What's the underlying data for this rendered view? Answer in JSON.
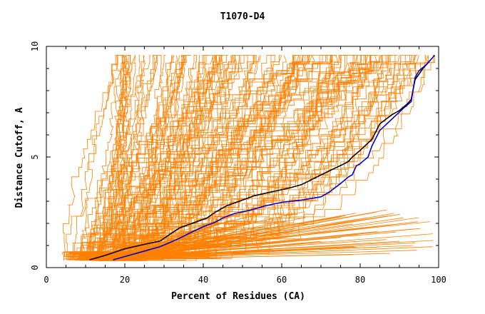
{
  "chart_data": {
    "type": "line",
    "title": "T1070-D4",
    "xlabel": "Percent of Residues (CA)",
    "ylabel": "Distance Cutoff, A",
    "xlim": [
      0,
      100
    ],
    "ylim": [
      0,
      10
    ],
    "x_ticks": [
      "0",
      "20",
      "40",
      "60",
      "80",
      "100"
    ],
    "y_ticks": [
      "0",
      "5",
      "10"
    ],
    "grid": false,
    "legend": "none",
    "colors": {
      "models": "#ff8000",
      "black_series": "#000000",
      "blue_series": "#0000cc"
    },
    "series": [
      {
        "color": "#000000",
        "x": [
          11,
          15,
          20,
          25,
          29,
          31,
          34,
          38,
          41,
          43,
          46,
          50,
          53,
          58,
          62,
          65,
          69,
          73,
          76,
          77,
          78,
          80,
          83,
          85,
          88,
          90,
          92,
          93,
          94,
          96,
          98
        ],
        "y": [
          0.35,
          0.55,
          0.85,
          1.05,
          1.2,
          1.45,
          1.8,
          2.05,
          2.25,
          2.5,
          2.8,
          3.05,
          3.25,
          3.45,
          3.6,
          3.75,
          4.1,
          4.45,
          4.7,
          4.8,
          5.0,
          5.3,
          5.8,
          6.5,
          6.9,
          7.1,
          7.4,
          7.6,
          8.5,
          9.0,
          9.4
        ]
      },
      {
        "color": "#0000cc",
        "x": [
          17,
          20,
          25,
          29,
          33,
          37,
          40,
          43,
          45,
          48,
          52,
          56,
          60,
          65,
          70,
          72,
          75,
          77,
          78,
          79,
          80,
          82,
          83,
          85,
          88,
          91,
          93,
          94,
          95,
          97,
          99
        ],
        "y": [
          0.35,
          0.5,
          0.75,
          0.95,
          1.25,
          1.6,
          1.85,
          2.05,
          2.25,
          2.45,
          2.6,
          2.8,
          2.95,
          3.05,
          3.2,
          3.4,
          3.8,
          4.1,
          4.2,
          4.6,
          4.7,
          5.0,
          5.5,
          6.2,
          6.7,
          7.2,
          7.5,
          8.6,
          8.9,
          9.2,
          9.6
        ]
      }
    ]
  }
}
